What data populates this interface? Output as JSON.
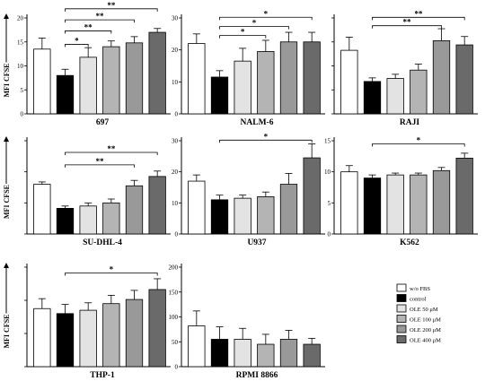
{
  "ylabel_text": "MFI CFSE",
  "colors": [
    "#ffffff",
    "#000000",
    "#e3e3e3",
    "#b4b4b4",
    "#999999",
    "#6a6a6a"
  ],
  "legend": [
    "w/o FBS",
    "control",
    "OLE 50 μM",
    "OLE 100 μM",
    "OLE 200 μM",
    "OLE 400 μM"
  ],
  "chart_data": [
    {
      "type": "bar",
      "title": "697",
      "ylabel": "MFI CFSE",
      "ylim": [
        0,
        20
      ],
      "yticks": [
        0,
        5,
        10,
        15,
        20
      ],
      "y_axis_labels_shown": true,
      "categories": [
        "w/o FBS",
        "control",
        "OLE 50 μM",
        "OLE 100 μM",
        "OLE 200 μM",
        "OLE 400 μM"
      ],
      "values": [
        13.5,
        8,
        11.8,
        14,
        14.8,
        17
      ],
      "errors": [
        2.3,
        1.3,
        2,
        1.2,
        1.3,
        0.8
      ],
      "annotations": [
        {
          "from": 1,
          "to": 2,
          "y": 14.5,
          "label": "*"
        },
        {
          "from": 1,
          "to": 3,
          "y": 17.3,
          "label": "**"
        },
        {
          "from": 1,
          "to": 4,
          "y": 19.6,
          "label": "**"
        },
        {
          "from": 1,
          "to": 5,
          "y": 21.9,
          "label": "**"
        }
      ]
    },
    {
      "type": "bar",
      "title": "NALM-6",
      "ylabel": "",
      "ylim": [
        0,
        30
      ],
      "yticks": [
        0,
        10,
        20,
        30
      ],
      "y_axis_labels_shown": true,
      "categories": [
        "w/o FBS",
        "control",
        "OLE 50 μM",
        "OLE 100 μM",
        "OLE 200 μM",
        "OLE 400 μM"
      ],
      "values": [
        22,
        11.5,
        16.5,
        19.5,
        22.5,
        22.5
      ],
      "errors": [
        3,
        2,
        4,
        3.5,
        3,
        3
      ],
      "annotations": [
        {
          "from": 1,
          "to": 3,
          "y": 24.5,
          "label": "*"
        },
        {
          "from": 1,
          "to": 4,
          "y": 27.3,
          "label": "*"
        },
        {
          "from": 1,
          "to": 5,
          "y": 30.2,
          "label": "*"
        }
      ]
    },
    {
      "type": "bar",
      "title": "RAJI",
      "ylabel": "",
      "ylim": [
        0,
        80
      ],
      "yticks": [
        0,
        20,
        40,
        60,
        80
      ],
      "y_axis_labels_shown": false,
      "categories": [
        "w/o FBS",
        "control",
        "OLE 50 μM",
        "OLE 100 μM",
        "OLE 200 μM",
        "OLE 400 μM"
      ],
      "values": [
        53,
        27,
        29.5,
        36.5,
        61,
        57.5
      ],
      "errors": [
        11,
        3,
        3.5,
        5,
        10,
        7
      ],
      "annotations": [
        {
          "from": 1,
          "to": 4,
          "y": 73.5,
          "label": "**"
        },
        {
          "from": 1,
          "to": 5,
          "y": 80.5,
          "label": "**"
        }
      ]
    },
    {
      "type": "bar",
      "title": "SU-DHL-4",
      "ylabel": "MFI CFSE",
      "ylim": [
        0,
        60
      ],
      "yticks": [
        0,
        20,
        40,
        60
      ],
      "y_axis_labels_shown": false,
      "categories": [
        "w/o FBS",
        "control",
        "OLE 50 μM",
        "OLE 100 μM",
        "OLE 200 μM",
        "OLE 400 μM"
      ],
      "values": [
        32,
        16.5,
        18,
        20,
        31,
        37
      ],
      "errors": [
        1.5,
        1.5,
        2,
        2.5,
        3.5,
        3.5
      ],
      "annotations": [
        {
          "from": 1,
          "to": 4,
          "y": 44.5,
          "label": "**"
        },
        {
          "from": 1,
          "to": 5,
          "y": 52.5,
          "label": "**"
        }
      ]
    },
    {
      "type": "bar",
      "title": "U937",
      "ylabel": "",
      "ylim": [
        0,
        30
      ],
      "yticks": [
        0,
        10,
        20,
        30
      ],
      "y_axis_labels_shown": true,
      "categories": [
        "w/o FBS",
        "control",
        "OLE 50 μM",
        "OLE 100 μM",
        "OLE 200 μM",
        "OLE 400 μM"
      ],
      "values": [
        17,
        11,
        11.5,
        12,
        16,
        24.5
      ],
      "errors": [
        2,
        1.5,
        1,
        1.5,
        3.5,
        4.5
      ],
      "annotations": [
        {
          "from": 1,
          "to": 5,
          "y": 30.2,
          "label": "*"
        }
      ]
    },
    {
      "type": "bar",
      "title": "K562",
      "ylabel": "",
      "ylim": [
        0,
        15
      ],
      "yticks": [
        0,
        5,
        10,
        15
      ],
      "y_axis_labels_shown": true,
      "categories": [
        "w/o FBS",
        "control",
        "OLE 50 μM",
        "OLE 100 μM",
        "OLE 200 μM",
        "OLE 400 μM"
      ],
      "values": [
        10,
        9,
        9.5,
        9.5,
        10.2,
        12.2
      ],
      "errors": [
        1,
        0.5,
        0.3,
        0.3,
        0.5,
        0.8
      ],
      "annotations": [
        {
          "from": 1,
          "to": 5,
          "y": 14.5,
          "label": "*"
        }
      ]
    },
    {
      "type": "bar",
      "title": "THP-1",
      "ylabel": "MFI CFSE",
      "ylim": [
        0,
        60
      ],
      "yticks": [
        0,
        20,
        40,
        60
      ],
      "y_axis_labels_shown": false,
      "categories": [
        "w/o FBS",
        "control",
        "OLE 50 μM",
        "OLE 100 μM",
        "OLE 200 μM",
        "OLE 400 μM"
      ],
      "values": [
        35,
        32,
        34,
        38,
        40.5,
        46.5
      ],
      "errors": [
        6,
        5.5,
        4.5,
        5,
        5.5,
        6.5
      ],
      "annotations": [
        {
          "from": 1,
          "to": 5,
          "y": 56.5,
          "label": "*"
        }
      ]
    },
    {
      "type": "bar",
      "title": "RPMI 8866",
      "ylabel": "",
      "ylim": [
        0,
        200
      ],
      "yticks": [
        0,
        50,
        100,
        150,
        200
      ],
      "y_axis_labels_shown": true,
      "categories": [
        "w/o FBS",
        "control",
        "OLE 50 μM",
        "OLE 100 μM",
        "OLE 200 μM",
        "OLE 400 μM"
      ],
      "values": [
        82,
        55,
        55,
        45,
        55,
        45
      ],
      "errors": [
        30,
        25,
        22,
        20,
        18,
        12
      ],
      "annotations": []
    }
  ]
}
